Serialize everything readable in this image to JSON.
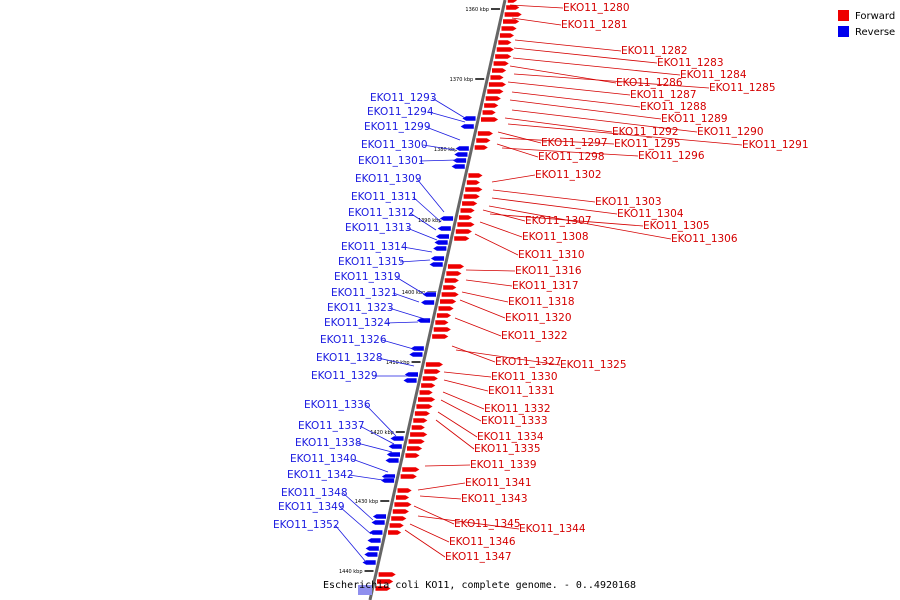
{
  "caption": "Escherichia coli KO11, complete genome. - 0..4920168",
  "legend": {
    "forward_label": "Forward",
    "reverse_label": "Reverse",
    "forward_color": "#ee0000",
    "reverse_color": "#0000ee"
  },
  "ticks": [
    "1360 kbp",
    "1370 kbp",
    "1380 kbp",
    "1390 kbp",
    "1400 kbp",
    "1410 kbp",
    "1420 kbp",
    "1430 kbp",
    "1440 kbp"
  ],
  "forward_genes": [
    "EKO11_1280",
    "EKO11_1281",
    "EKO11_1282",
    "EKO11_1283",
    "EKO11_1284",
    "EKO11_1286",
    "EKO11_1285",
    "EKO11_1287",
    "EKO11_1288",
    "EKO11_1289",
    "EKO11_1290",
    "EKO11_1292",
    "EKO11_1291",
    "EKO11_1297",
    "EKO11_1295",
    "EKO11_1298",
    "EKO11_1296",
    "EKO11_1302",
    "EKO11_1303",
    "EKO11_1304",
    "EKO11_1307",
    "EKO11_1305",
    "EKO11_1308",
    "EKO11_1306",
    "EKO11_1310",
    "EKO11_1316",
    "EKO11_1317",
    "EKO11_1318",
    "EKO11_1320",
    "EKO11_1322",
    "EKO11_1327",
    "EKO11_1325",
    "EKO11_1330",
    "EKO11_1331",
    "EKO11_1332",
    "EKO11_1333",
    "EKO11_1334",
    "EKO11_1335",
    "EKO11_1339",
    "EKO11_1341",
    "EKO11_1343",
    "EKO11_1345",
    "EKO11_1344",
    "EKO11_1346",
    "EKO11_1347"
  ],
  "reverse_genes": [
    "EKO11_1293",
    "EKO11_1294",
    "EKO11_1299",
    "EKO11_1300",
    "EKO11_1301",
    "EKO11_1309",
    "EKO11_1311",
    "EKO11_1312",
    "EKO11_1313",
    "EKO11_1314",
    "EKO11_1315",
    "EKO11_1319",
    "EKO11_1321",
    "EKO11_1323",
    "EKO11_1324",
    "EKO11_1326",
    "EKO11_1328",
    "EKO11_1329",
    "EKO11_1336",
    "EKO11_1337",
    "EKO11_1338",
    "EKO11_1340",
    "EKO11_1342",
    "EKO11_1348",
    "EKO11_1349",
    "EKO11_1352"
  ]
}
